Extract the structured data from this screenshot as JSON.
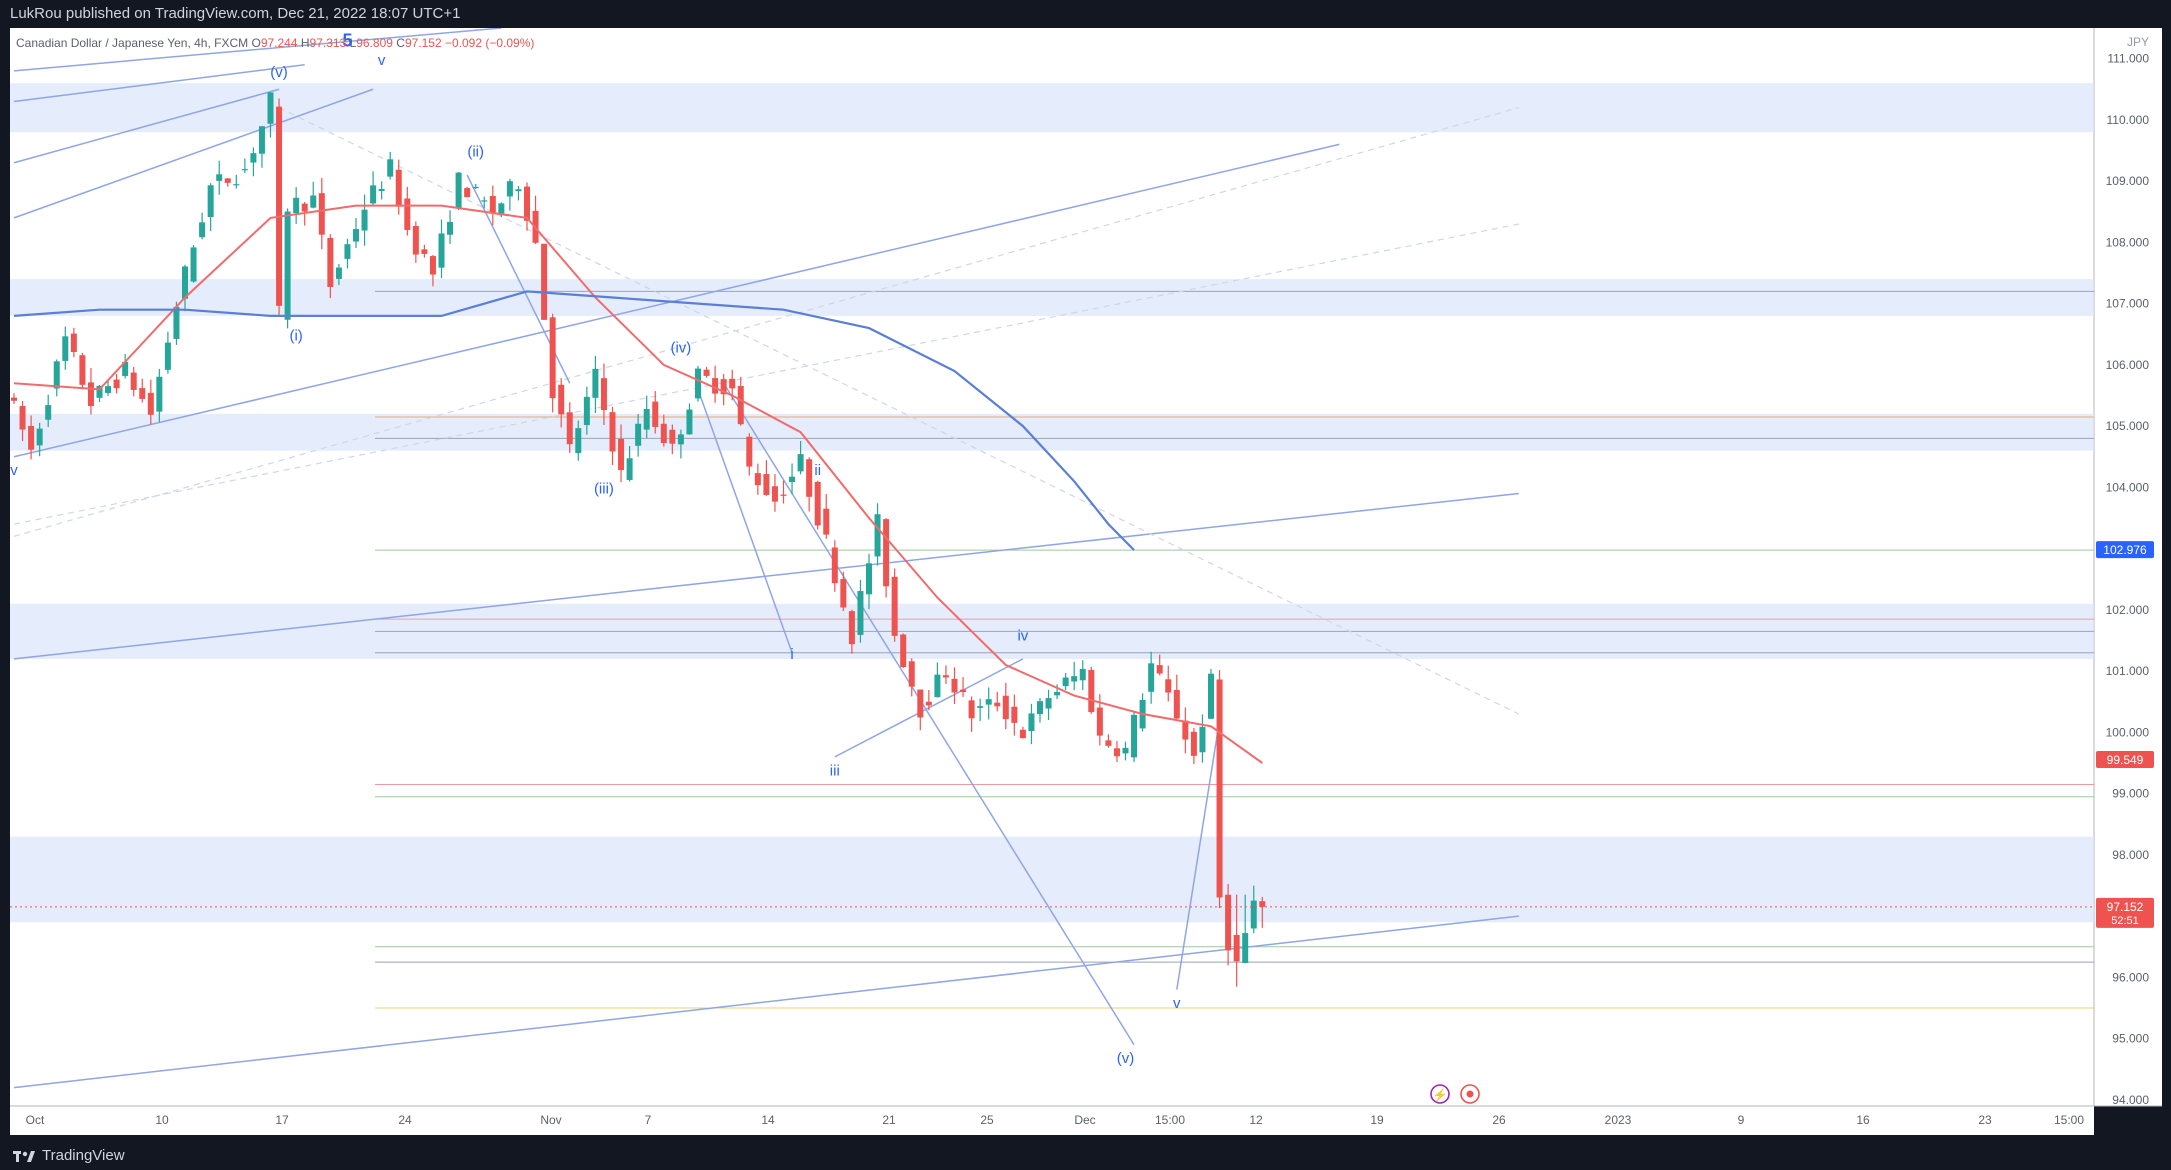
{
  "header": {
    "publish_line": "LukRou published on TradingView.com, Dec 21, 2022 18:07 UTC+1"
  },
  "footer": {
    "brand": "TradingView"
  },
  "symbol": {
    "title": "Canadian Dollar / Japanese Yen, 4h, FXCM",
    "O": "97.244",
    "H": "97.313",
    "L": "96.809",
    "C": "97.152",
    "change": "−0.092 (−0.09%)"
  },
  "colors": {
    "bg": "#131722",
    "chart_bg": "#ffffff",
    "up": "#26a69a",
    "down": "#ef5350",
    "wave": "#2962ff",
    "line": "#8fa6e6",
    "zone": "#dce6fb",
    "ma_red": "#f06b6b",
    "ma_blue": "#5b7fd6"
  },
  "chart_data": {
    "type": "candlestick",
    "currency": "JPY",
    "ylim": [
      93.9,
      111.5
    ],
    "yticks": [
      "111.000",
      "110.000",
      "109.000",
      "108.000",
      "107.000",
      "106.000",
      "105.000",
      "104.000",
      "103.000",
      "102.000",
      "101.000",
      "100.000",
      "99.000",
      "98.000",
      "97.000",
      "96.000",
      "95.000",
      "94.000"
    ],
    "ytick_values": [
      111,
      110,
      109,
      108,
      107,
      106,
      105,
      104,
      103,
      102,
      101,
      100,
      99,
      98,
      97,
      96,
      95,
      94
    ],
    "xticks": [
      "Oct",
      "10",
      "17",
      "24",
      "Nov",
      "7",
      "14",
      "21",
      "25",
      "Dec",
      "15:00",
      "12",
      "19",
      "26",
      "2023",
      "9",
      "16",
      "23",
      "15:00"
    ],
    "price_labels": [
      {
        "text": "102.976",
        "value": 102.976,
        "color": "#2962ff"
      },
      {
        "text": "99.549",
        "value": 99.549,
        "color": "#ef5350"
      },
      {
        "text": "97.152",
        "value": 97.152,
        "color": "#ef5350",
        "sub": "52:51"
      }
    ],
    "path_points": [
      [
        0,
        105.6
      ],
      [
        3,
        104.6
      ],
      [
        7,
        106.4
      ],
      [
        10,
        105.4
      ],
      [
        14,
        105.9
      ],
      [
        17,
        105.2
      ],
      [
        20,
        107.0
      ],
      [
        24,
        108.9
      ],
      [
        28,
        109.2
      ],
      [
        30,
        109.9
      ],
      [
        31,
        110.3
      ],
      [
        32,
        106.8
      ],
      [
        33,
        108.6
      ],
      [
        36,
        108.7
      ],
      [
        38,
        107.3
      ],
      [
        42,
        108.6
      ],
      [
        45,
        109.2
      ],
      [
        47,
        108.2
      ],
      [
        50,
        107.5
      ],
      [
        53,
        109.0
      ],
      [
        57,
        108.5
      ],
      [
        60,
        109.0
      ],
      [
        62,
        108.0
      ],
      [
        63,
        106.8
      ],
      [
        64,
        105.6
      ],
      [
        66,
        104.6
      ],
      [
        69,
        105.8
      ],
      [
        72,
        104.2
      ],
      [
        75,
        105.3
      ],
      [
        78,
        104.6
      ],
      [
        81,
        105.8
      ],
      [
        85,
        105.6
      ],
      [
        87,
        104.3
      ],
      [
        90,
        103.8
      ],
      [
        93,
        104.4
      ],
      [
        96,
        103.1
      ],
      [
        99,
        101.6
      ],
      [
        102,
        103.4
      ],
      [
        104,
        101.6
      ],
      [
        107,
        100.4
      ],
      [
        110,
        101.0
      ],
      [
        113,
        100.3
      ],
      [
        116,
        100.5
      ],
      [
        119,
        100.0
      ],
      [
        122,
        100.6
      ],
      [
        126,
        101.0
      ],
      [
        128,
        99.9
      ],
      [
        131,
        99.7
      ],
      [
        134,
        101.1
      ],
      [
        137,
        100.3
      ],
      [
        139,
        99.6
      ],
      [
        141,
        100.8
      ],
      [
        142,
        97.3
      ],
      [
        143,
        96.6
      ],
      [
        144,
        96.2
      ],
      [
        146,
        97.2
      ]
    ],
    "total_bars": 146,
    "series_ma_red": [
      [
        0,
        105.7
      ],
      [
        10,
        105.6
      ],
      [
        20,
        107.1
      ],
      [
        30,
        108.4
      ],
      [
        40,
        108.6
      ],
      [
        50,
        108.6
      ],
      [
        60,
        108.4
      ],
      [
        68,
        107.1
      ],
      [
        76,
        106.0
      ],
      [
        84,
        105.5
      ],
      [
        92,
        104.9
      ],
      [
        100,
        103.5
      ],
      [
        108,
        102.2
      ],
      [
        116,
        101.1
      ],
      [
        124,
        100.6
      ],
      [
        132,
        100.3
      ],
      [
        140,
        100.1
      ],
      [
        146,
        99.5
      ]
    ],
    "series_ma_blue": [
      [
        0,
        106.8
      ],
      [
        10,
        106.9
      ],
      [
        20,
        106.9
      ],
      [
        30,
        106.8
      ],
      [
        40,
        106.8
      ],
      [
        50,
        106.8
      ],
      [
        60,
        107.2
      ],
      [
        70,
        107.1
      ],
      [
        80,
        107.0
      ],
      [
        90,
        106.9
      ],
      [
        100,
        106.6
      ],
      [
        110,
        105.9
      ],
      [
        118,
        105.0
      ],
      [
        124,
        104.1
      ],
      [
        128,
        103.4
      ],
      [
        131,
        102.976
      ]
    ],
    "wave_labels": [
      {
        "text": "(v)",
        "bar": 31,
        "price": 110.7
      },
      {
        "text": "5",
        "bar": 39,
        "price": 111.2,
        "bold": true
      },
      {
        "text": "v",
        "bar": 43,
        "price": 110.9
      },
      {
        "text": "(i)",
        "bar": 33,
        "price": 106.4
      },
      {
        "text": "(ii)",
        "bar": 54,
        "price": 109.4
      },
      {
        "text": "(iii)",
        "bar": 69,
        "price": 103.9
      },
      {
        "text": "(iv)",
        "bar": 78,
        "price": 106.2
      },
      {
        "text": "ii",
        "bar": 94,
        "price": 104.2
      },
      {
        "text": "i",
        "bar": 91,
        "price": 101.2
      },
      {
        "text": "iii",
        "bar": 96,
        "price": 99.3
      },
      {
        "text": "iv",
        "bar": 118,
        "price": 101.5
      },
      {
        "text": "v",
        "bar": 136,
        "price": 95.5
      },
      {
        "text": "(v)",
        "bar": 130,
        "price": 94.6
      },
      {
        "text": "v",
        "bar": 0,
        "price": 104.2
      }
    ],
    "zones": [
      [
        109.8,
        110.6
      ],
      [
        106.8,
        107.4
      ],
      [
        104.6,
        105.2
      ],
      [
        101.2,
        102.1
      ],
      [
        96.9,
        98.3
      ]
    ],
    "hlines": [
      {
        "price": 107.2,
        "color": "#9aa3b5"
      },
      {
        "price": 105.15,
        "color": "#e2b07a"
      },
      {
        "price": 104.8,
        "color": "#9aa3b5"
      },
      {
        "price": 102.976,
        "color": "#9ccc9a"
      },
      {
        "price": 101.85,
        "color": "#d9a6a6"
      },
      {
        "price": 101.65,
        "color": "#9aa3b5"
      },
      {
        "price": 101.3,
        "color": "#9aa3b5"
      },
      {
        "price": 99.15,
        "color": "#ef9a9a"
      },
      {
        "price": 98.95,
        "color": "#9ccc9a"
      },
      {
        "price": 96.5,
        "color": "#9ccc9a"
      },
      {
        "price": 96.25,
        "color": "#9aa3b5"
      },
      {
        "price": 95.5,
        "color": "#e8d27a"
      }
    ],
    "trendlines": [
      {
        "from": [
          0,
          110.8
        ],
        "to": [
          57,
          111.5
        ],
        "color": "#8fa6e6"
      },
      {
        "from": [
          0,
          110.3
        ],
        "to": [
          34,
          110.9
        ],
        "color": "#8fa6e6"
      },
      {
        "from": [
          0,
          109.3
        ],
        "to": [
          31,
          110.5
        ],
        "color": "#8fa6e6"
      },
      {
        "from": [
          0,
          108.4
        ],
        "to": [
          42,
          110.5
        ],
        "color": "#8fa6e6"
      },
      {
        "from": [
          0,
          104.5
        ],
        "to": [
          155,
          109.6
        ],
        "color": "#8fa6e6"
      },
      {
        "from": [
          0,
          101.2
        ],
        "to": [
          176,
          103.9
        ],
        "color": "#8fa6e6"
      },
      {
        "from": [
          0,
          94.2
        ],
        "to": [
          176,
          97.0
        ],
        "color": "#8fa6e6"
      },
      {
        "from": [
          0,
          103.4
        ],
        "to": [
          176,
          108.3
        ],
        "color": "#cfd6e6",
        "dash": true
      },
      {
        "from": [
          0,
          103.2
        ],
        "to": [
          176,
          110.2
        ],
        "color": "#cfd6e6",
        "dash": true
      },
      {
        "from": [
          31,
          110.2
        ],
        "to": [
          176,
          100.3
        ],
        "color": "#cfd6e6",
        "dash": true
      },
      {
        "from": [
          53,
          109.1
        ],
        "to": [
          65,
          105.7
        ],
        "color": "#8fa6e6"
      },
      {
        "from": [
          80,
          105.6
        ],
        "to": [
          91,
          101.3
        ],
        "color": "#8fa6e6"
      },
      {
        "from": [
          83,
          105.7
        ],
        "to": [
          131,
          94.9
        ],
        "color": "#8fa6e6"
      },
      {
        "from": [
          96,
          99.6
        ],
        "to": [
          118,
          101.2
        ],
        "color": "#8fa6e6"
      },
      {
        "from": [
          141,
          100.2
        ],
        "to": [
          136,
          95.8
        ],
        "color": "#8fa6e6"
      }
    ]
  }
}
